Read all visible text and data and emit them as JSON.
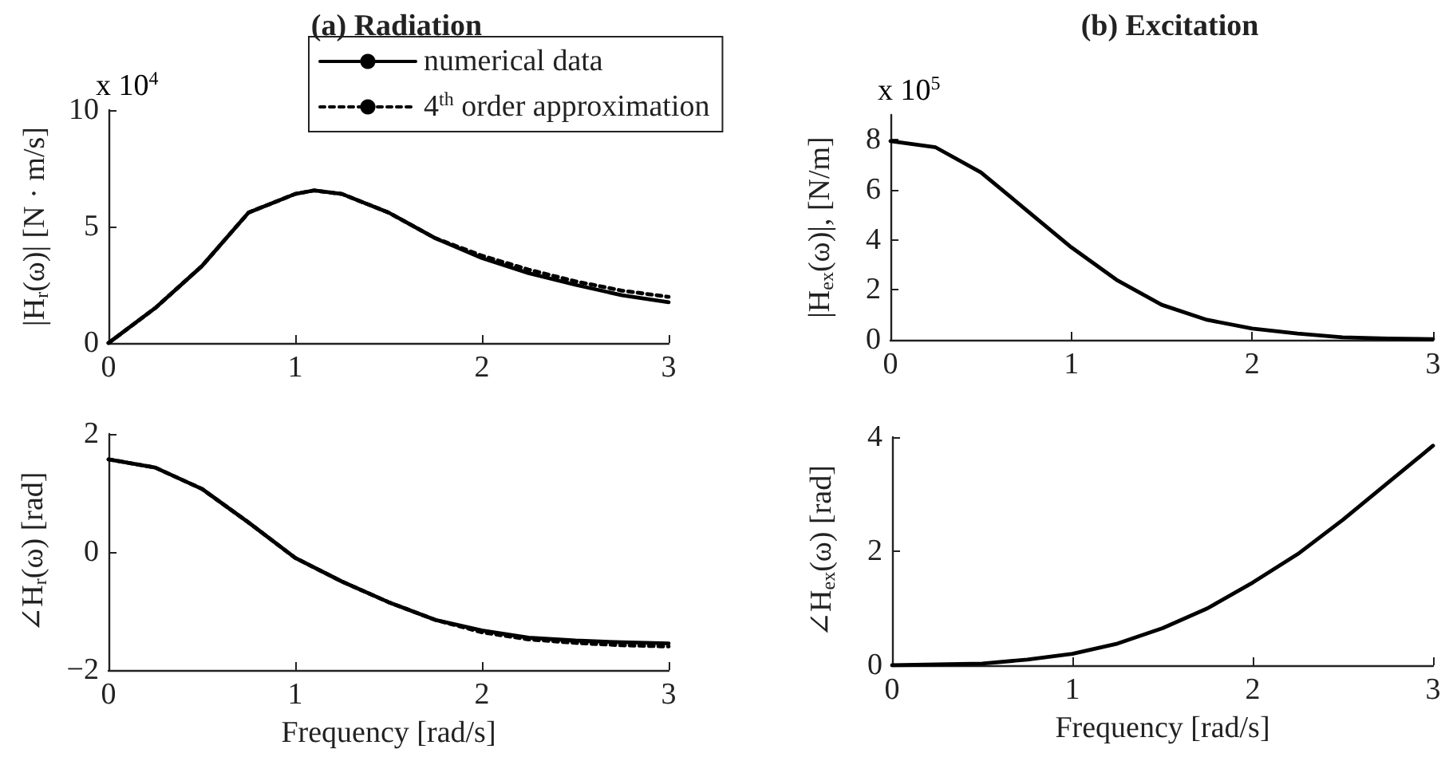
{
  "chart_data": [
    {
      "type": "line",
      "title": "(a) Radiation",
      "ylabel": "|H$_{r}$(ω)| [N · m/s]",
      "annotations": [
        "x 10$^{4}$"
      ],
      "legend": "top",
      "marker": "none",
      "xlim": [
        0,
        3
      ],
      "xticks": [
        0,
        1,
        2,
        3
      ],
      "ylim": [
        0,
        10
      ],
      "yticks": [
        0,
        5,
        10
      ],
      "series": [
        {
          "name": "numerical data",
          "color": "#000000",
          "line_style": "solid",
          "x": [
            0,
            0.25,
            0.5,
            0.75,
            1.0,
            1.1,
            1.25,
            1.5,
            1.75,
            2.0,
            2.25,
            2.5,
            2.75,
            3.0
          ],
          "values": [
            0,
            1.5,
            3.3,
            5.6,
            6.4,
            6.55,
            6.4,
            5.6,
            4.5,
            3.65,
            3.0,
            2.5,
            2.05,
            1.75
          ]
        },
        {
          "name": "4$^{th}$ order approximation",
          "color": "#000000",
          "line_style": "dotted",
          "x": [
            0,
            0.25,
            0.5,
            0.75,
            1.0,
            1.1,
            1.25,
            1.5,
            1.75,
            2.0,
            2.25,
            2.5,
            2.75,
            3.0
          ],
          "values": [
            0,
            1.5,
            3.3,
            5.6,
            6.4,
            6.55,
            6.4,
            5.6,
            4.5,
            3.75,
            3.15,
            2.65,
            2.25,
            1.98
          ]
        }
      ]
    },
    {
      "type": "line",
      "title": "(b) Excitation",
      "ylabel": "|H$_{ex}$(ω)|, [N/m]",
      "annotations": [
        "x 10$^{5}$"
      ],
      "marker": "none",
      "xlim": [
        0,
        3
      ],
      "xticks": [
        0,
        1,
        2,
        3
      ],
      "ylim": [
        0,
        9
      ],
      "yticks": [
        0,
        2,
        4,
        6,
        8
      ],
      "series": [
        {
          "color": "#000000",
          "line_style": "solid",
          "x": [
            0,
            0.25,
            0.5,
            0.75,
            1.0,
            1.25,
            1.5,
            1.75,
            2.0,
            2.25,
            2.5,
            2.75,
            3.0
          ],
          "values": [
            7.95,
            7.7,
            6.7,
            5.2,
            3.7,
            2.4,
            1.4,
            0.8,
            0.45,
            0.25,
            0.1,
            0.05,
            0.03
          ]
        }
      ]
    },
    {
      "type": "line",
      "xlabel": "Frequency [rad/s]",
      "ylabel": "∠H$_{r}$(ω) [rad]",
      "marker": "none",
      "xlim": [
        0,
        3
      ],
      "xticks": [
        0,
        1,
        2,
        3
      ],
      "ylim": [
        -2,
        2
      ],
      "yticks": [
        -2,
        0,
        2
      ],
      "series": [
        {
          "color": "#000000",
          "line_style": "solid",
          "x": [
            0,
            0.25,
            0.5,
            0.75,
            1.0,
            1.25,
            1.5,
            1.75,
            2.0,
            2.25,
            2.5,
            2.75,
            3.0
          ],
          "values": [
            1.57,
            1.43,
            1.07,
            0.5,
            -0.1,
            -0.5,
            -0.85,
            -1.15,
            -1.33,
            -1.45,
            -1.5,
            -1.53,
            -1.55
          ]
        },
        {
          "color": "#000000",
          "line_style": "dotted",
          "x": [
            0,
            0.25,
            0.5,
            0.75,
            1.0,
            1.25,
            1.5,
            1.75,
            2.0,
            2.25,
            2.5,
            2.75,
            3.0
          ],
          "values": [
            1.57,
            1.43,
            1.07,
            0.5,
            -0.1,
            -0.5,
            -0.85,
            -1.15,
            -1.36,
            -1.48,
            -1.54,
            -1.58,
            -1.6
          ]
        }
      ]
    },
    {
      "type": "line",
      "xlabel": "Frequency [rad/s]",
      "ylabel": "∠H$_{ex}$(ω) [rad]",
      "marker": "none",
      "xlim": [
        0,
        3
      ],
      "xticks": [
        0,
        1,
        2,
        3
      ],
      "ylim": [
        0,
        4
      ],
      "yticks": [
        0,
        2,
        4
      ],
      "series": [
        {
          "color": "#000000",
          "line_style": "solid",
          "x": [
            0,
            0.5,
            0.75,
            1.0,
            1.25,
            1.5,
            1.75,
            2.0,
            2.25,
            2.5,
            2.75,
            3.0
          ],
          "values": [
            0,
            0.03,
            0.1,
            0.2,
            0.38,
            0.65,
            1.0,
            1.45,
            1.95,
            2.55,
            3.2,
            3.85
          ]
        }
      ]
    }
  ]
}
